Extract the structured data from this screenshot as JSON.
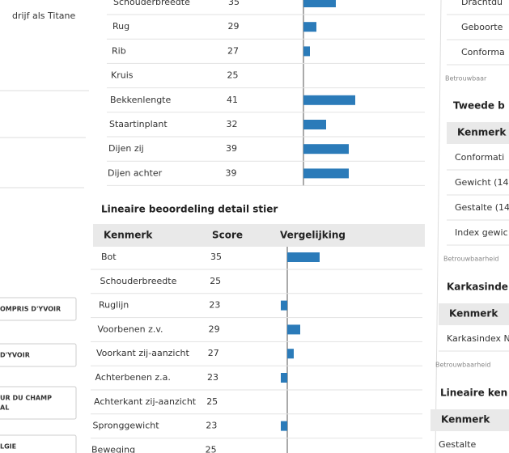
{
  "left_column": {
    "text": "drijf als Titane",
    "buttons": [
      [
        "OMPRIS D'YVOIR"
      ],
      [
        "D'YVOIR"
      ],
      [
        "UR DU CHAMP",
        "AL"
      ],
      [
        "LGIE"
      ]
    ]
  },
  "table_top": {
    "rows": [
      {
        "label": "Schouderbreedte",
        "score": 35
      },
      {
        "label": "Rug",
        "score": 29
      },
      {
        "label": "Rib",
        "score": 27
      },
      {
        "label": "Kruis",
        "score": 25
      },
      {
        "label": "Bekkenlengte",
        "score": 41
      },
      {
        "label": "Staartinplant",
        "score": 32
      },
      {
        "label": "Dijen zij",
        "score": 39
      },
      {
        "label": "Dijen achter",
        "score": 39
      }
    ]
  },
  "table_detail": {
    "title": "Lineaire beoordeling detail stier",
    "headers": [
      "Kenmerk",
      "Score",
      "Vergelijking"
    ],
    "rows": [
      {
        "label": "Bot",
        "score": 35
      },
      {
        "label": "Schouderbreedte",
        "score": 25
      },
      {
        "label": "Ruglijn",
        "score": 23
      },
      {
        "label": "Voorbenen z.v.",
        "score": 29
      },
      {
        "label": "Voorkant zij-aanzicht",
        "score": 27
      },
      {
        "label": "Achterbenen z.a.",
        "score": 23
      },
      {
        "label": "Achterkant zij-aanzicht",
        "score": 25
      },
      {
        "label": "Spronggewicht",
        "score": 23
      },
      {
        "label": "Beweging",
        "score": 25
      }
    ]
  },
  "vergelijking_center": 25,
  "right_column": {
    "rows": [
      "Drachtdu",
      "Geboorte",
      "Conforma"
    ],
    "note": "Betrouwbaar",
    "sections": [
      {
        "title": "Tweede b",
        "header": "Kenmerk",
        "rows": [
          "Conformati",
          "Gewicht (14",
          "Gestalte (14",
          "Index gewic"
        ],
        "note": "Betrouwbaarheid"
      },
      {
        "title": "Karkasinde",
        "header": "Kenmerk",
        "rows": [
          "Karkasindex N"
        ],
        "note": "Betrouwbaarheid"
      },
      {
        "title": "Lineaire ken",
        "header": "Kenmerk",
        "rows": [
          "Gestalte"
        ]
      }
    ]
  }
}
